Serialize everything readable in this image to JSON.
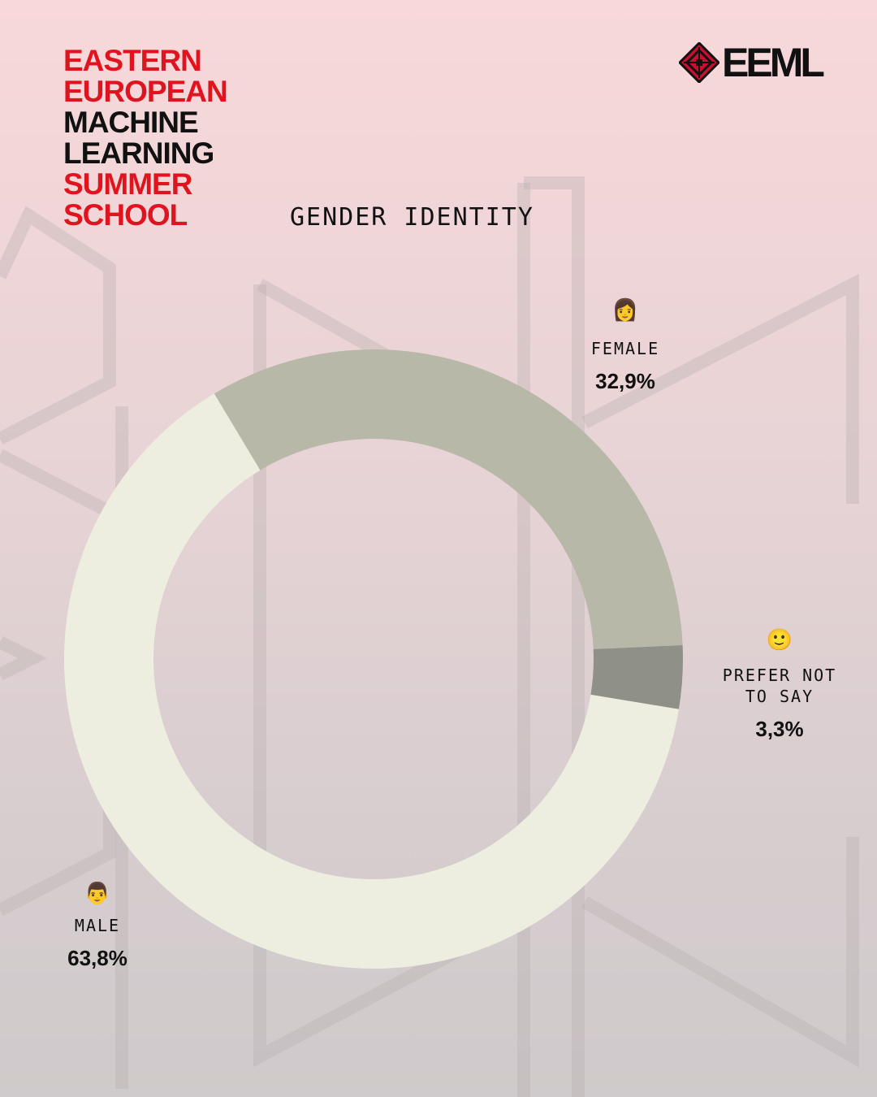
{
  "header": {
    "school_lines": [
      {
        "text": "EASTERN",
        "color": "#e0141e"
      },
      {
        "text": "EUROPEAN",
        "color": "#e0141e"
      },
      {
        "text": "MACHINE",
        "color": "#111111"
      },
      {
        "text": "LEARNING",
        "color": "#111111"
      },
      {
        "text": "SUMMER",
        "color": "#e0141e"
      },
      {
        "text": "SCHOOL",
        "color": "#e0141e"
      }
    ],
    "logo_text": "EEML",
    "logo_icon": "ornament-diamond-icon"
  },
  "chart_data": {
    "type": "pie",
    "style": "donut",
    "title": "GENDER IDENTITY",
    "slices": [
      {
        "label": "FEMALE",
        "value": 32.9,
        "value_label": "32,9%",
        "color": "#b7b8a8",
        "icon": "woman-emoji"
      },
      {
        "label": "PREFER NOT TO SAY",
        "value": 3.3,
        "value_label": "3,3%",
        "color": "#8f9088",
        "icon": "smiling-face-emoji"
      },
      {
        "label": "MALE",
        "value": 63.8,
        "value_label": "63,8%",
        "color": "#edeee0",
        "icon": "man-emoji"
      }
    ]
  },
  "labels": {
    "female": {
      "emoji": "👩",
      "name": "FEMALE",
      "pct": "32,9%"
    },
    "other": {
      "emoji": "🙂",
      "name_line1": "PREFER NOT",
      "name_line2": "TO SAY",
      "pct": "3,3%"
    },
    "male": {
      "emoji": "👨",
      "name": "MALE",
      "pct": "63,8%"
    }
  }
}
